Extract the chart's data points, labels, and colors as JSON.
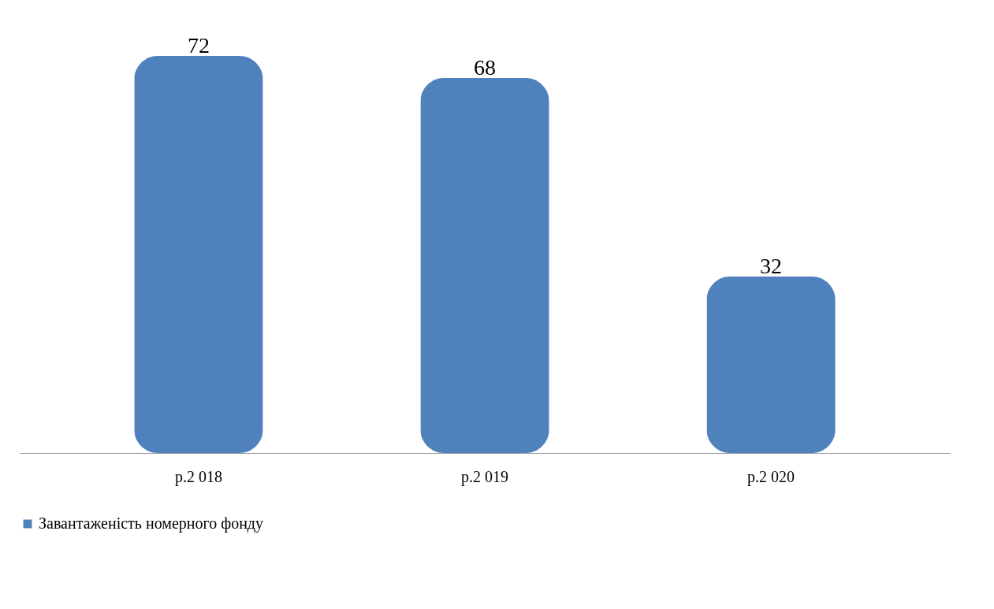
{
  "chart_data": {
    "type": "bar",
    "categories": [
      "р.2 018",
      "р.2 019",
      "р.2 020"
    ],
    "series": [
      {
        "name": "Завантаженість номерного фонду",
        "color": "#4f81bd",
        "values": [
          72,
          68,
          32
        ]
      }
    ],
    "data_labels": true,
    "legend": "bottom",
    "grid": false
  }
}
